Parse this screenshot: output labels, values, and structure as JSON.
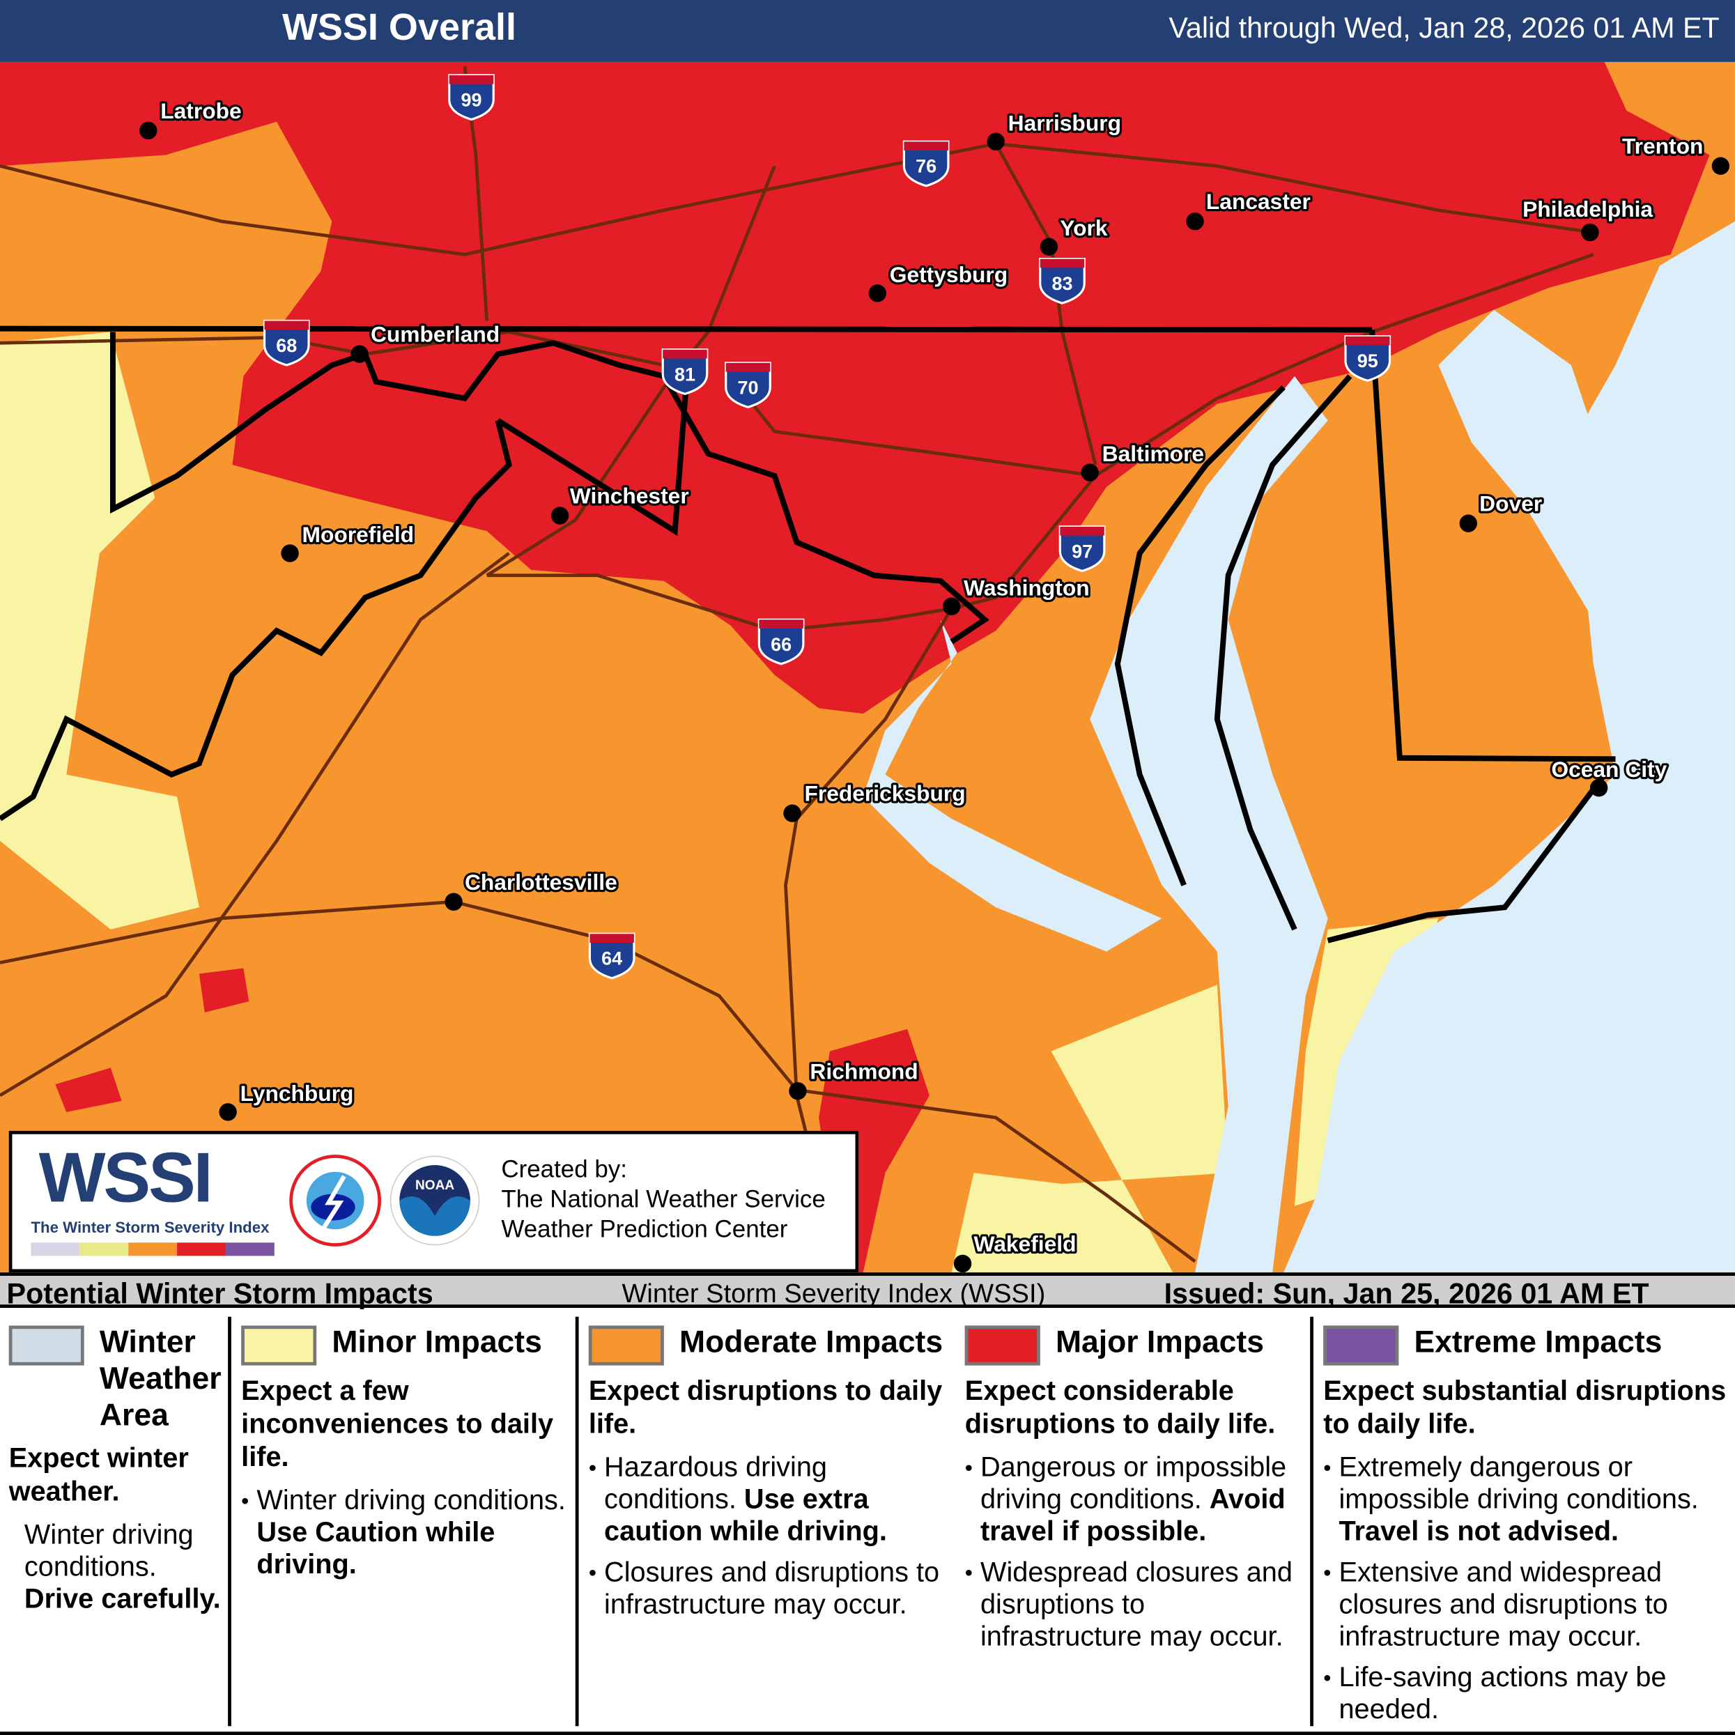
{
  "header": {
    "title": "WSSI Overall",
    "valid": "Valid through Wed, Jan 28, 2026 01 AM ET",
    "bg_color": "#243f74"
  },
  "map": {
    "colors": {
      "moderate": "#f7962f",
      "major": "#e31e26",
      "minor": "#f8f4a4",
      "water": "#dbeefa",
      "winter_weather_area": "#d1dde6",
      "roads": "#6b2c0e"
    },
    "cities": [
      {
        "name": "Latrobe"
      },
      {
        "name": "Harrisburg"
      },
      {
        "name": "Trenton"
      },
      {
        "name": "Lancaster"
      },
      {
        "name": "Philadelphia"
      },
      {
        "name": "York"
      },
      {
        "name": "Gettysburg"
      },
      {
        "name": "Cumberland"
      },
      {
        "name": "Baltimore"
      },
      {
        "name": "Winchester"
      },
      {
        "name": "Dover"
      },
      {
        "name": "Moorefield"
      },
      {
        "name": "Washington"
      },
      {
        "name": "Ocean City"
      },
      {
        "name": "Fredericksburg"
      },
      {
        "name": "Charlottesville"
      },
      {
        "name": "Richmond"
      },
      {
        "name": "Lynchburg"
      },
      {
        "name": "Wakefield"
      }
    ],
    "interstates": [
      "99",
      "76",
      "83",
      "68",
      "81",
      "70",
      "95",
      "97",
      "66",
      "64"
    ]
  },
  "logo": {
    "wssi": "WSSI",
    "tagline": "The Winter Storm Severity Index",
    "scale_colors": [
      "#d8d4e8",
      "#eaea8a",
      "#f7962f",
      "#e31e26",
      "#7a54a1"
    ],
    "nws_icon": "nws-logo",
    "noaa_icon": "noaa-logo"
  },
  "credit": {
    "line1": "Created by:",
    "line2": "The National Weather Service",
    "line3": "Weather Prediction Center"
  },
  "bar": {
    "left": "Potential Winter Storm Impacts",
    "middle": "Winter Storm Severity Index (WSSI)",
    "right": "Issued: Sun, Jan 25, 2026 01 AM ET"
  },
  "legend": [
    {
      "label": "Winter Weather Area",
      "label_lines": [
        "Winter",
        "Weather",
        "Area"
      ],
      "color": "#d1dde6",
      "headline": "Expect winter weather.",
      "text": "Winter driving conditions.",
      "bold": "Drive carefully."
    },
    {
      "label": "Minor Impacts",
      "color": "#f8f4a4",
      "headline": "Expect a few inconveniences to daily life.",
      "bullets": [
        {
          "text": "Winter driving conditions.",
          "bold": "Use Caution while driving."
        }
      ]
    },
    {
      "label": "Moderate Impacts",
      "color": "#f7962f",
      "headline": "Expect disruptions to daily life.",
      "bullets": [
        {
          "text": "Hazardous driving conditions.",
          "bold": "Use extra caution while driving."
        },
        {
          "text": "Closures and disruptions to infrastructure may occur.",
          "bold": ""
        }
      ]
    },
    {
      "label": "Major Impacts",
      "color": "#e31e26",
      "headline": "Expect considerable disruptions to daily life.",
      "bullets": [
        {
          "text": "Dangerous or impossible driving conditions.",
          "bold": "Avoid travel if possible."
        },
        {
          "text": "Widespread closures and disruptions to infrastructure may occur.",
          "bold": ""
        }
      ]
    },
    {
      "label": "Extreme Impacts",
      "color": "#7a54a1",
      "headline": "Expect substantial disruptions to daily life.",
      "bullets": [
        {
          "text": "Extremely dangerous or impossible driving conditions.",
          "bold": "Travel is not advised."
        },
        {
          "text": "Extensive and widespread closures and disruptions to infrastructure may occur.",
          "bold": ""
        },
        {
          "text": "Life-saving actions may be needed.",
          "bold": ""
        }
      ]
    }
  ]
}
